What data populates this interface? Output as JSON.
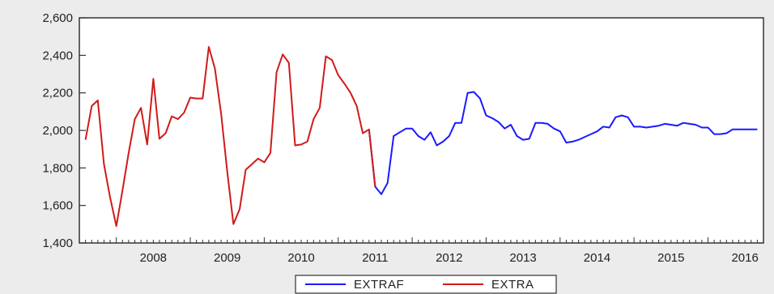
{
  "chart_data": {
    "type": "line",
    "title": "",
    "xlabel": "",
    "ylabel": "",
    "ylim": [
      1400,
      2600
    ],
    "xlim": [
      2007.5,
      2016.75
    ],
    "yticks": [
      "1,400",
      "1,600",
      "1,800",
      "2,000",
      "2,200",
      "2,400",
      "2,600"
    ],
    "ytick_values": [
      1400,
      1600,
      1800,
      2000,
      2200,
      2400,
      2600
    ],
    "xticks": [
      "2008",
      "2009",
      "2010",
      "2011",
      "2012",
      "2013",
      "2014",
      "2015",
      "2016"
    ],
    "xtick_values": [
      2008,
      2009,
      2010,
      2011,
      2012,
      2013,
      2014,
      2015,
      2016
    ],
    "grid": false,
    "legend_position": "bottom",
    "series": [
      {
        "name": "EXTRAF",
        "color": "#1a1aff",
        "x": [
          2011.417,
          2011.5,
          2011.583,
          2011.667,
          2011.75,
          2011.833,
          2011.917,
          2012.0,
          2012.083,
          2012.167,
          2012.25,
          2012.333,
          2012.417,
          2012.5,
          2012.583,
          2012.667,
          2012.75,
          2012.833,
          2012.917,
          2013.0,
          2013.083,
          2013.167,
          2013.25,
          2013.333,
          2013.417,
          2013.5,
          2013.583,
          2013.667,
          2013.75,
          2013.833,
          2013.917,
          2014.0,
          2014.083,
          2014.167,
          2014.25,
          2014.333,
          2014.417,
          2014.5,
          2014.583,
          2014.667,
          2014.75,
          2014.833,
          2014.917,
          2015.0,
          2015.083,
          2015.167,
          2015.25,
          2015.333,
          2015.417,
          2015.5,
          2015.583,
          2015.667,
          2015.75,
          2015.833,
          2015.917,
          2016.0,
          2016.083,
          2016.167,
          2016.25,
          2016.333,
          2016.417,
          2016.5,
          2016.583,
          2016.667
        ],
        "y": [
          2005,
          1700,
          1660,
          1720,
          1970,
          1990,
          2010,
          2010,
          1970,
          1950,
          1990,
          1920,
          1940,
          1970,
          2040,
          2040,
          2200,
          2205,
          2170,
          2080,
          2065,
          2045,
          2010,
          2030,
          1970,
          1950,
          1955,
          2040,
          2040,
          2035,
          2010,
          1995,
          1935,
          1940,
          1950,
          1965,
          1980,
          1995,
          2020,
          2015,
          2070,
          2080,
          2070,
          2020,
          2020,
          2015,
          2020,
          2025,
          2035,
          2030,
          2025,
          2040,
          2035,
          2030,
          2015,
          2015,
          1980,
          1980,
          1985,
          2005,
          2005,
          2005,
          2005,
          2005
        ]
      },
      {
        "name": "EXTRA",
        "color": "#d11a1a",
        "x": [
          2007.583,
          2007.667,
          2007.75,
          2007.833,
          2007.917,
          2008.0,
          2008.083,
          2008.167,
          2008.25,
          2008.333,
          2008.417,
          2008.5,
          2008.583,
          2008.667,
          2008.75,
          2008.833,
          2008.917,
          2009.0,
          2009.083,
          2009.167,
          2009.25,
          2009.333,
          2009.417,
          2009.5,
          2009.583,
          2009.667,
          2009.75,
          2009.833,
          2009.917,
          2010.0,
          2010.083,
          2010.167,
          2010.25,
          2010.333,
          2010.417,
          2010.5,
          2010.583,
          2010.667,
          2010.75,
          2010.833,
          2010.917,
          2011.0,
          2011.083,
          2011.167,
          2011.25,
          2011.333,
          2011.417,
          2011.5
        ],
        "y": [
          1950,
          2130,
          2160,
          1820,
          1640,
          1490,
          1680,
          1880,
          2060,
          2120,
          1925,
          2275,
          1955,
          1985,
          2075,
          2060,
          2095,
          2175,
          2170,
          2170,
          2445,
          2330,
          2090,
          1780,
          1500,
          1580,
          1790,
          1820,
          1850,
          1830,
          1880,
          2310,
          2405,
          2360,
          1920,
          1925,
          1940,
          2060,
          2120,
          2395,
          2375,
          2295,
          2250,
          2200,
          2130,
          1985,
          2005,
          1700
        ]
      }
    ]
  }
}
